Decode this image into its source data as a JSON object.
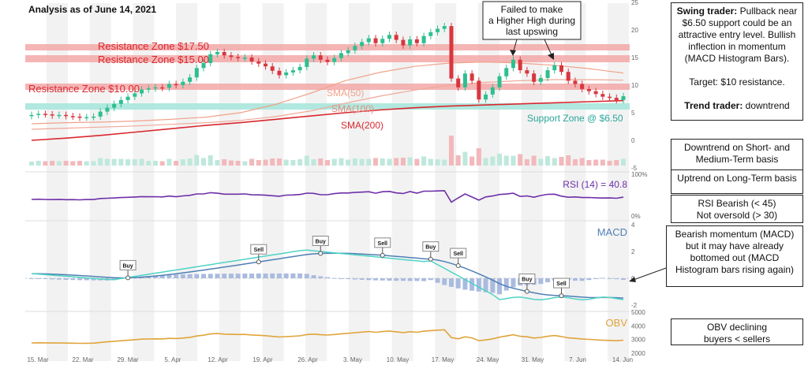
{
  "title": "Analysis as of June 14, 2021",
  "callout": "Failed to make a Higher High during last upswing",
  "zones": {
    "res_175": "Resistance Zone  $17.50",
    "res_15": "Resistance Zone  $15.00",
    "res_10": "Resistance Zone  $10.00",
    "support": "Support Zone @ $6.50"
  },
  "sma_labels": {
    "sma50": "SMA(50)",
    "sma100": "SMA(100)",
    "sma200": "SMA(200)"
  },
  "panels": {
    "rsi": "RSI (14) = 40.8",
    "macd": "MACD",
    "obv": "OBV"
  },
  "price_axis": {
    "ticks": [
      "25",
      "20",
      "15",
      "10",
      "5",
      "0",
      "-5"
    ]
  },
  "rsi_axis": {
    "ticks": [
      "100%",
      "0%"
    ]
  },
  "macd_axis": {
    "ticks": [
      "4",
      "2",
      "0",
      "-2"
    ]
  },
  "obv_axis": {
    "ticks": [
      "5000",
      "4000",
      "3000",
      "2000"
    ]
  },
  "x_labels": [
    "15. Mar",
    "22. Mar",
    "29. Mar",
    "5. Apr",
    "12. Apr",
    "19. Apr",
    "26. Apr",
    "3. May",
    "10. May",
    "17. May",
    "24. May",
    "31. May",
    "7. Jun",
    "14. Jun"
  ],
  "signals": [
    "Buy",
    "Sell",
    "Buy",
    "Sell",
    "Buy",
    "Sell",
    "Buy",
    "Sell"
  ],
  "notes": {
    "swing_label": "Swing trader:",
    "swing_text": " Pullback near $6.50 support could be an attractive entry level. Bullish inflection in momentum (MACD Histogram Bars).",
    "target": "Target: $10 resistance.",
    "trend_label": "Trend trader:",
    "trend_text": " downtrend",
    "downtrend": "Downtrend on Short- and Medium-Term basis",
    "uptrend": "Uptrend on Long-Term basis",
    "rsi_l1": "RSI Bearish (< 45)",
    "rsi_l2": "Not oversold (> 30)",
    "macd_note": "Bearish momentum (MACD) but it may have already bottomed out (MACD Histogram bars rising again)",
    "obv_l1": "OBV declining",
    "obv_l2": "buyers < sellers"
  },
  "chart_data": {
    "type": "candlestick",
    "title": "Analysis as of June 14, 2021",
    "y_range": [
      -5,
      25
    ],
    "closes": [
      4.6,
      4.8,
      4.7,
      4.5,
      4.6,
      4.4,
      4.3,
      4.1,
      4.2,
      4.3,
      5.2,
      5.9,
      6.6,
      7.3,
      7.9,
      8.5,
      9.2,
      9.4,
      9.6,
      9.5,
      10.2,
      10.0,
      10.6,
      11.4,
      13.1,
      14.0,
      15.6,
      16.0,
      15.4,
      15.1,
      14.9,
      15.0,
      14.3,
      13.9,
      13.4,
      12.6,
      11.8,
      12.3,
      12.7,
      13.3,
      14.8,
      15.4,
      14.6,
      14.2,
      14.9,
      15.8,
      16.3,
      17.1,
      17.8,
      18.5,
      17.6,
      18.4,
      19.1,
      18.2,
      17.2,
      18.3,
      17.6,
      18.9,
      19.6,
      20.2,
      20.7,
      11.2,
      9.6,
      12.1,
      10.8,
      7.4,
      8.3,
      9.6,
      11.6,
      13.1,
      14.6,
      12.7,
      12.1,
      10.6,
      11.3,
      12.7,
      13.6,
      12.4,
      10.8,
      10.2,
      9.3,
      8.9,
      8.4,
      7.9,
      7.7,
      7.3,
      8.0
    ],
    "sma50": [
      3.0,
      3.2,
      3.3,
      3.5,
      3.8,
      4.2,
      5.0,
      6.5,
      8.5,
      10.8,
      12.3,
      13.4,
      14.0,
      14.2,
      14.0,
      13.6,
      13.0,
      12.2
    ],
    "sma100": [
      2.0,
      2.2,
      2.4,
      2.6,
      2.9,
      3.2,
      3.6,
      4.3,
      5.3,
      6.7,
      8.0,
      9.1,
      10.0,
      10.5,
      10.8,
      11.0,
      11.0,
      10.9
    ],
    "sma200": [
      0.0,
      0.4,
      0.9,
      1.5,
      2.1,
      2.7,
      3.2,
      3.8,
      4.4,
      5.0,
      5.5,
      5.9,
      6.2,
      6.4,
      6.6,
      6.8,
      7.0,
      7.2
    ],
    "resistance": [
      17.5,
      15.0,
      10.0
    ],
    "support": 6.5,
    "rsi_last": 40.8,
    "macd_range": [
      -2.5,
      4.5
    ],
    "obv_range": [
      2000,
      5000
    ]
  }
}
